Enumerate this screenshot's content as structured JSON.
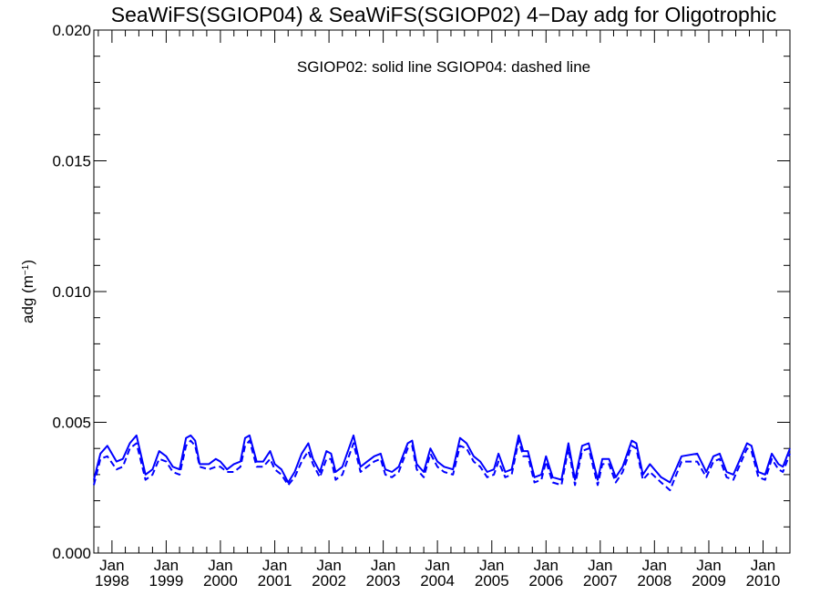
{
  "chart_data": {
    "type": "line",
    "title": "SeaWiFS(SGIOP04) & SeaWiFS(SGIOP02) 4−Day adg for Oligotrophic",
    "annotation": "SGIOP02: solid line   SGIOP04: dashed line",
    "xlabel": "",
    "ylabel_main": "adg (m",
    "ylabel_sup": "−1",
    "ylabel_close": ")",
    "ylim": [
      0.0,
      0.02
    ],
    "xlim": [
      "1997-09-01",
      "2010-07-01"
    ],
    "y_ticks": [
      {
        "value": 0.0,
        "label": "0.000"
      },
      {
        "value": 0.005,
        "label": "0.005"
      },
      {
        "value": 0.01,
        "label": "0.010"
      },
      {
        "value": 0.015,
        "label": "0.015"
      },
      {
        "value": 0.02,
        "label": "0.020"
      }
    ],
    "x_ticks": [
      {
        "date": "1998-01-01",
        "month": "Jan",
        "year": "1998"
      },
      {
        "date": "1999-01-01",
        "month": "Jan",
        "year": "1999"
      },
      {
        "date": "2000-01-01",
        "month": "Jan",
        "year": "2000"
      },
      {
        "date": "2001-01-01",
        "month": "Jan",
        "year": "2001"
      },
      {
        "date": "2002-01-01",
        "month": "Jan",
        "year": "2002"
      },
      {
        "date": "2003-01-01",
        "month": "Jan",
        "year": "2003"
      },
      {
        "date": "2004-01-01",
        "month": "Jan",
        "year": "2004"
      },
      {
        "date": "2005-01-01",
        "month": "Jan",
        "year": "2005"
      },
      {
        "date": "2006-01-01",
        "month": "Jan",
        "year": "2006"
      },
      {
        "date": "2007-01-01",
        "month": "Jan",
        "year": "2007"
      },
      {
        "date": "2008-01-01",
        "month": "Jan",
        "year": "2008"
      },
      {
        "date": "2009-01-01",
        "month": "Jan",
        "year": "2009"
      },
      {
        "date": "2010-01-01",
        "month": "Jan",
        "year": "2010"
      }
    ],
    "series": [
      {
        "name": "SGIOP02",
        "style": "solid",
        "color": "#0000ff",
        "points": [
          [
            "1997-09-01",
            0.0028
          ],
          [
            "1997-10-15",
            0.0038
          ],
          [
            "1997-12-01",
            0.0041
          ],
          [
            "1998-02-01",
            0.0035
          ],
          [
            "1998-03-15",
            0.0036
          ],
          [
            "1998-05-01",
            0.0042
          ],
          [
            "1998-06-15",
            0.0045
          ],
          [
            "1998-08-15",
            0.003
          ],
          [
            "1998-10-01",
            0.0032
          ],
          [
            "1998-11-15",
            0.0039
          ],
          [
            "1999-01-01",
            0.0037
          ],
          [
            "1999-02-15",
            0.0033
          ],
          [
            "1999-04-01",
            0.0032
          ],
          [
            "1999-05-15",
            0.0044
          ],
          [
            "1999-06-15",
            0.0045
          ],
          [
            "1999-07-15",
            0.0043
          ],
          [
            "1999-08-15",
            0.0034
          ],
          [
            "1999-10-15",
            0.0034
          ],
          [
            "1999-12-01",
            0.0036
          ],
          [
            "2000-01-01",
            0.0035
          ],
          [
            "2000-02-15",
            0.0032
          ],
          [
            "2000-04-01",
            0.0034
          ],
          [
            "2000-05-15",
            0.0035
          ],
          [
            "2000-06-15",
            0.0044
          ],
          [
            "2000-07-15",
            0.0045
          ],
          [
            "2000-09-01",
            0.0035
          ],
          [
            "2000-10-15",
            0.0035
          ],
          [
            "2000-12-01",
            0.0039
          ],
          [
            "2001-01-01",
            0.0034
          ],
          [
            "2001-02-15",
            0.0032
          ],
          [
            "2001-04-01",
            0.0027
          ],
          [
            "2001-05-15",
            0.0031
          ],
          [
            "2001-07-01",
            0.0038
          ],
          [
            "2001-08-15",
            0.0042
          ],
          [
            "2001-09-15",
            0.0036
          ],
          [
            "2001-11-01",
            0.0031
          ],
          [
            "2001-12-15",
            0.0039
          ],
          [
            "2002-01-15",
            0.0038
          ],
          [
            "2002-02-15",
            0.0031
          ],
          [
            "2002-04-01",
            0.0033
          ],
          [
            "2002-05-15",
            0.004
          ],
          [
            "2002-06-15",
            0.0045
          ],
          [
            "2002-08-01",
            0.0033
          ],
          [
            "2002-09-15",
            0.0035
          ],
          [
            "2002-11-01",
            0.0037
          ],
          [
            "2002-12-15",
            0.0038
          ],
          [
            "2003-01-15",
            0.0032
          ],
          [
            "2003-03-01",
            0.0031
          ],
          [
            "2003-04-15",
            0.0033
          ],
          [
            "2003-06-15",
            0.0042
          ],
          [
            "2003-07-15",
            0.0043
          ],
          [
            "2003-08-15",
            0.0034
          ],
          [
            "2003-10-01",
            0.0031
          ],
          [
            "2003-11-15",
            0.004
          ],
          [
            "2004-01-01",
            0.0035
          ],
          [
            "2004-02-15",
            0.0033
          ],
          [
            "2004-04-15",
            0.0032
          ],
          [
            "2004-06-01",
            0.0044
          ],
          [
            "2004-07-15",
            0.0042
          ],
          [
            "2004-09-01",
            0.0037
          ],
          [
            "2004-10-15",
            0.0035
          ],
          [
            "2004-12-01",
            0.0031
          ],
          [
            "2005-01-15",
            0.0032
          ],
          [
            "2005-02-15",
            0.0038
          ],
          [
            "2005-04-01",
            0.0031
          ],
          [
            "2005-05-15",
            0.0032
          ],
          [
            "2005-07-01",
            0.0045
          ],
          [
            "2005-08-01",
            0.0039
          ],
          [
            "2005-09-01",
            0.0039
          ],
          [
            "2005-10-15",
            0.0029
          ],
          [
            "2005-12-01",
            0.003
          ],
          [
            "2006-01-01",
            0.0037
          ],
          [
            "2006-02-15",
            0.0029
          ],
          [
            "2006-04-15",
            0.0028
          ],
          [
            "2006-06-01",
            0.0042
          ],
          [
            "2006-07-15",
            0.0028
          ],
          [
            "2006-09-01",
            0.0041
          ],
          [
            "2006-10-15",
            0.0042
          ],
          [
            "2006-12-15",
            0.0028
          ],
          [
            "2007-01-15",
            0.0036
          ],
          [
            "2007-03-01",
            0.0036
          ],
          [
            "2007-04-15",
            0.0029
          ],
          [
            "2007-06-01",
            0.0033
          ],
          [
            "2007-08-01",
            0.0043
          ],
          [
            "2007-09-01",
            0.0042
          ],
          [
            "2007-10-15",
            0.003
          ],
          [
            "2007-12-01",
            0.0034
          ],
          [
            "2008-02-15",
            0.0029
          ],
          [
            "2008-04-15",
            0.0027
          ],
          [
            "2008-07-01",
            0.0037
          ],
          [
            "2008-10-15",
            0.0038
          ],
          [
            "2008-12-15",
            0.0031
          ],
          [
            "2009-02-01",
            0.0037
          ],
          [
            "2009-03-15",
            0.0038
          ],
          [
            "2009-05-01",
            0.0031
          ],
          [
            "2009-06-15",
            0.003
          ],
          [
            "2009-09-15",
            0.0042
          ],
          [
            "2009-10-15",
            0.0041
          ],
          [
            "2009-12-01",
            0.0031
          ],
          [
            "2010-01-15",
            0.003
          ],
          [
            "2010-03-01",
            0.0038
          ],
          [
            "2010-04-15",
            0.0034
          ],
          [
            "2010-05-15",
            0.0033
          ],
          [
            "2010-07-01",
            0.004
          ]
        ]
      },
      {
        "name": "SGIOP04",
        "style": "dashed",
        "color": "#0000ff",
        "points": [
          [
            "1997-09-01",
            0.0026
          ],
          [
            "1997-10-15",
            0.0036
          ],
          [
            "1997-12-01",
            0.0037
          ],
          [
            "1998-02-01",
            0.0032
          ],
          [
            "1998-03-15",
            0.0033
          ],
          [
            "1998-05-01",
            0.004
          ],
          [
            "1998-06-15",
            0.0042
          ],
          [
            "1998-08-15",
            0.0028
          ],
          [
            "1998-10-01",
            0.003
          ],
          [
            "1998-11-15",
            0.0036
          ],
          [
            "1999-01-01",
            0.0035
          ],
          [
            "1999-02-15",
            0.0031
          ],
          [
            "1999-04-01",
            0.003
          ],
          [
            "1999-05-15",
            0.0041
          ],
          [
            "1999-06-15",
            0.0043
          ],
          [
            "1999-07-15",
            0.0041
          ],
          [
            "1999-08-15",
            0.0033
          ],
          [
            "1999-10-15",
            0.0032
          ],
          [
            "1999-12-01",
            0.0033
          ],
          [
            "2000-01-01",
            0.0033
          ],
          [
            "2000-02-15",
            0.0031
          ],
          [
            "2000-04-01",
            0.0031
          ],
          [
            "2000-05-15",
            0.0033
          ],
          [
            "2000-06-15",
            0.0041
          ],
          [
            "2000-07-15",
            0.0043
          ],
          [
            "2000-09-01",
            0.0033
          ],
          [
            "2000-10-15",
            0.0033
          ],
          [
            "2000-12-01",
            0.0036
          ],
          [
            "2001-01-01",
            0.0032
          ],
          [
            "2001-02-15",
            0.003
          ],
          [
            "2001-04-01",
            0.0026
          ],
          [
            "2001-05-15",
            0.0029
          ],
          [
            "2001-07-01",
            0.0035
          ],
          [
            "2001-08-15",
            0.0039
          ],
          [
            "2001-09-15",
            0.0034
          ],
          [
            "2001-11-01",
            0.0029
          ],
          [
            "2001-12-15",
            0.0036
          ],
          [
            "2002-01-15",
            0.0036
          ],
          [
            "2002-02-15",
            0.0028
          ],
          [
            "2002-04-01",
            0.003
          ],
          [
            "2002-05-15",
            0.0037
          ],
          [
            "2002-06-15",
            0.0042
          ],
          [
            "2002-08-01",
            0.0031
          ],
          [
            "2002-09-15",
            0.0033
          ],
          [
            "2002-11-01",
            0.0035
          ],
          [
            "2002-12-15",
            0.0036
          ],
          [
            "2003-01-15",
            0.003
          ],
          [
            "2003-03-01",
            0.0029
          ],
          [
            "2003-04-15",
            0.0031
          ],
          [
            "2003-06-15",
            0.004
          ],
          [
            "2003-07-15",
            0.0041
          ],
          [
            "2003-08-15",
            0.0032
          ],
          [
            "2003-10-01",
            0.0029
          ],
          [
            "2003-11-15",
            0.0038
          ],
          [
            "2004-01-01",
            0.0033
          ],
          [
            "2004-02-15",
            0.0031
          ],
          [
            "2004-04-15",
            0.003
          ],
          [
            "2004-06-01",
            0.0041
          ],
          [
            "2004-07-15",
            0.004
          ],
          [
            "2004-09-01",
            0.0035
          ],
          [
            "2004-10-15",
            0.0033
          ],
          [
            "2004-12-01",
            0.0029
          ],
          [
            "2005-01-15",
            0.003
          ],
          [
            "2005-02-15",
            0.0035
          ],
          [
            "2005-04-01",
            0.0029
          ],
          [
            "2005-05-15",
            0.003
          ],
          [
            "2005-07-01",
            0.0043
          ],
          [
            "2005-08-01",
            0.0037
          ],
          [
            "2005-09-01",
            0.0037
          ],
          [
            "2005-10-15",
            0.0027
          ],
          [
            "2005-12-01",
            0.0028
          ],
          [
            "2006-01-01",
            0.0035
          ],
          [
            "2006-02-15",
            0.0027
          ],
          [
            "2006-04-15",
            0.0026
          ],
          [
            "2006-06-01",
            0.004
          ],
          [
            "2006-07-15",
            0.0026
          ],
          [
            "2006-09-01",
            0.0039
          ],
          [
            "2006-10-15",
            0.004
          ],
          [
            "2006-12-15",
            0.0026
          ],
          [
            "2007-01-15",
            0.0034
          ],
          [
            "2007-03-01",
            0.0034
          ],
          [
            "2007-04-15",
            0.0027
          ],
          [
            "2007-06-01",
            0.0031
          ],
          [
            "2007-08-01",
            0.0041
          ],
          [
            "2007-09-01",
            0.004
          ],
          [
            "2007-10-15",
            0.0028
          ],
          [
            "2007-12-01",
            0.0031
          ],
          [
            "2008-02-15",
            0.0027
          ],
          [
            "2008-04-15",
            0.0024
          ],
          [
            "2008-07-01",
            0.0035
          ],
          [
            "2008-10-15",
            0.0035
          ],
          [
            "2008-12-15",
            0.0029
          ],
          [
            "2009-02-01",
            0.0035
          ],
          [
            "2009-03-15",
            0.0036
          ],
          [
            "2009-05-01",
            0.0029
          ],
          [
            "2009-06-15",
            0.0028
          ],
          [
            "2009-09-15",
            0.004
          ],
          [
            "2009-10-15",
            0.0039
          ],
          [
            "2009-12-01",
            0.0029
          ],
          [
            "2010-01-15",
            0.0028
          ],
          [
            "2010-03-01",
            0.0036
          ],
          [
            "2010-04-15",
            0.0032
          ],
          [
            "2010-05-15",
            0.0031
          ],
          [
            "2010-07-01",
            0.0038
          ]
        ]
      }
    ]
  }
}
